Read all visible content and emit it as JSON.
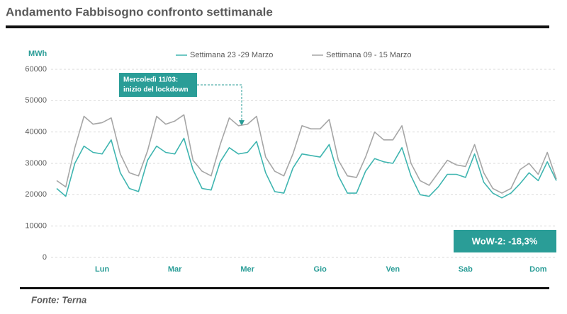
{
  "chart_data": {
    "type": "line",
    "title": "Andamento Fabbisogno confronto settimanale",
    "y_label": "MWh",
    "annotation": [
      "Mercoledì 11/03:",
      "inizio del lockdown"
    ],
    "callout": "WoW-2: -18,3%",
    "source": "Fonte: Terna",
    "categories": [
      null,
      null,
      null,
      null,
      null,
      "Lun",
      null,
      null,
      null,
      null,
      null,
      null,
      null,
      "Mar",
      null,
      null,
      null,
      null,
      null,
      null,
      null,
      "Mer",
      null,
      null,
      null,
      null,
      null,
      null,
      null,
      "Gio",
      null,
      null,
      null,
      null,
      null,
      null,
      null,
      "Ven",
      null,
      null,
      null,
      null,
      null,
      null,
      null,
      "Sab",
      null,
      null,
      null,
      null,
      null,
      null,
      null,
      "Dom",
      null,
      null
    ],
    "series": [
      {
        "name": "Settimana 23 -29 Marzo",
        "color": "#3fb5b0",
        "values": [
          22000,
          19500,
          30000,
          35500,
          33500,
          33000,
          37500,
          27000,
          22000,
          21000,
          31000,
          35500,
          33500,
          33000,
          38000,
          28000,
          22000,
          21500,
          30500,
          35000,
          33000,
          33500,
          37000,
          27000,
          21000,
          20500,
          28500,
          33000,
          32500,
          32000,
          36000,
          26000,
          20500,
          20500,
          27500,
          31500,
          30500,
          30000,
          35000,
          26000,
          20000,
          19500,
          22500,
          26500,
          26500,
          25500,
          33000,
          24000,
          20500,
          19000,
          20500,
          23500,
          27000,
          24500,
          30500,
          24500
        ]
      },
      {
        "name": "Settimana  09 - 15 Marzo",
        "color": "#a6a6a6",
        "values": [
          24500,
          22500,
          35000,
          45000,
          42500,
          43000,
          44500,
          33000,
          27000,
          26000,
          34000,
          45000,
          42500,
          43500,
          45500,
          31000,
          27500,
          26000,
          36000,
          44500,
          42000,
          42500,
          45000,
          32000,
          27500,
          26000,
          33000,
          42000,
          41000,
          41000,
          44000,
          31000,
          26000,
          25500,
          32000,
          40000,
          37500,
          37500,
          42000,
          30000,
          24500,
          23000,
          27000,
          31000,
          29500,
          29000,
          36000,
          27000,
          22000,
          20500,
          22000,
          28000,
          30000,
          26500,
          33500,
          25000
        ]
      }
    ],
    "ylim": [
      0,
      60000
    ],
    "yticks": [
      0,
      10000,
      20000,
      30000,
      40000,
      50000,
      60000
    ],
    "grid": true
  }
}
